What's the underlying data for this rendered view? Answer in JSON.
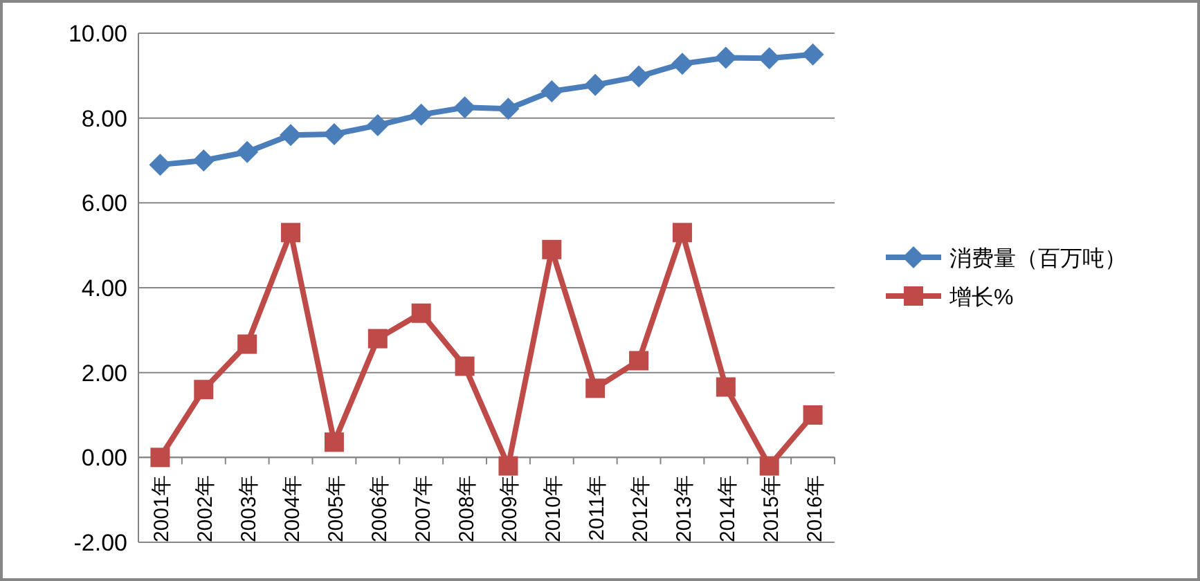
{
  "chart_data": {
    "type": "line",
    "categories": [
      "2001年",
      "2002年",
      "2003年",
      "2004年",
      "2005年",
      "2006年",
      "2007年",
      "2008年",
      "2009年",
      "2010年",
      "2011年",
      "2012年",
      "2013年",
      "2014年",
      "2015年",
      "2016年"
    ],
    "series": [
      {
        "name": "消费量（百万吨）",
        "color": "#4a7ebb",
        "marker": "diamond",
        "values": [
          6.9,
          7.0,
          7.2,
          7.6,
          7.62,
          7.83,
          8.08,
          8.25,
          8.22,
          8.63,
          8.78,
          8.98,
          9.28,
          9.42,
          9.41,
          9.5
        ]
      },
      {
        "name": "增长%",
        "color": "#be4b48",
        "marker": "square",
        "values": [
          0,
          1.6,
          2.67,
          5.3,
          0.36,
          2.8,
          3.4,
          2.15,
          -0.2,
          4.9,
          1.63,
          2.28,
          5.3,
          1.66,
          -0.2,
          1.0
        ]
      }
    ],
    "ylim": [
      -2,
      10
    ],
    "yticks": [
      {
        "value": -2,
        "label": "-2.00"
      },
      {
        "value": 0,
        "label": "0.00"
      },
      {
        "value": 2,
        "label": "2.00"
      },
      {
        "value": 4,
        "label": "4.00"
      },
      {
        "value": 6,
        "label": "6.00"
      },
      {
        "value": 8,
        "label": "8.00"
      },
      {
        "value": 10,
        "label": "10.00"
      }
    ],
    "grid": "y",
    "legend": "right"
  }
}
